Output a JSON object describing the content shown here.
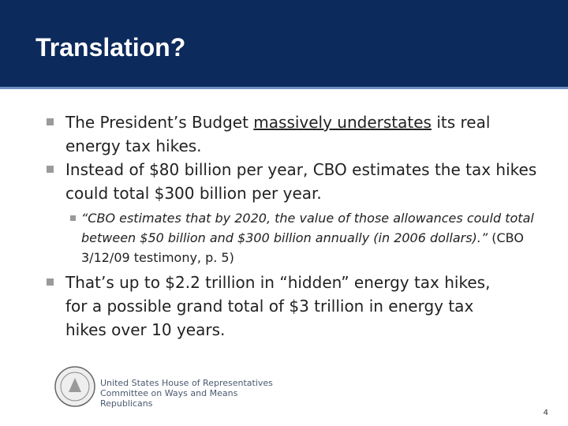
{
  "header": {
    "title": "Translation?"
  },
  "bullets": [
    {
      "before": "The President’s Budget ",
      "emphasis": "massively understates",
      "after": " its real energy tax hikes."
    },
    {
      "text": "Instead of $80 billion per year, CBO estimates the tax hikes could total $300 billion per year."
    },
    {
      "text": "That’s up to $2.2 trillion in “hidden” energy tax hikes, for a possible grand total of $3 trillion in energy tax hikes over 10 years."
    }
  ],
  "sub_bullet": {
    "quote": "“CBO estimates that by 2020, the value of those allowances could total between $50 billion and $300 billion annually (in 2006 dollars).”",
    "source": " (CBO 3/12/09 testimony, p. 5)"
  },
  "footer": {
    "lines": [
      "United States House of Representatives",
      "Committee on Ways and Means",
      "Republicans"
    ],
    "page": "4"
  }
}
